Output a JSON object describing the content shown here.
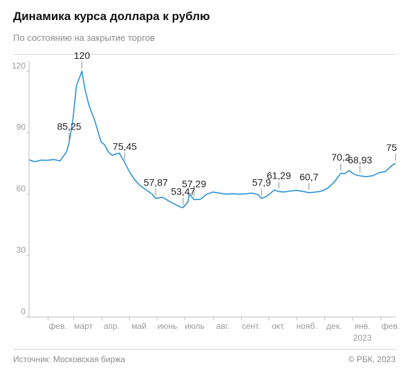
{
  "header": {
    "title": "Динамика курса доллара к рублю",
    "subtitle": "По состоянию на закрытие торгов"
  },
  "footer": {
    "source": "Источник: Московская биржа",
    "copyright": "© РБК, 2023"
  },
  "colors": {
    "line": "#2b8fd6",
    "axis": "#bdbdbd",
    "text": "#222222",
    "muted": "#9a9a9a"
  },
  "chart_data": {
    "type": "line",
    "title": "Динамика курса доллара к рублю",
    "ylim": [
      0,
      125
    ],
    "y_ticks": [
      0,
      30,
      60,
      90,
      120
    ],
    "y_tick_labels": [
      "0",
      "30",
      "60",
      "90",
      "120"
    ],
    "grid": false,
    "x_tick_labels": [
      "фев.",
      "март",
      "апр.",
      "май",
      "июнь",
      "июль",
      "авг.",
      "сент.",
      "окт.",
      "нояб.",
      "дек.",
      "янв.",
      "фев."
    ],
    "x_ticks": [
      "2022-02-01",
      "2022-03-01",
      "2022-04-01",
      "2022-05-01",
      "2022-06-01",
      "2022-07-01",
      "2022-08-01",
      "2022-09-01",
      "2022-10-01",
      "2022-11-01",
      "2022-12-01",
      "2023-01-01",
      "2023-02-01"
    ],
    "x_range": [
      "2022-01-11",
      "2023-02-17"
    ],
    "year_label": "2023",
    "series": [
      {
        "x": [
          "2022-01-11",
          "2022-01-17",
          "2022-01-24",
          "2022-01-31",
          "2022-02-07",
          "2022-02-14",
          "2022-02-21",
          "2022-02-24",
          "2022-02-28",
          "2022-03-04",
          "2022-03-10",
          "2022-03-11",
          "2022-03-14",
          "2022-03-18",
          "2022-03-24",
          "2022-03-31",
          "2022-04-04",
          "2022-04-08",
          "2022-04-12",
          "2022-04-20",
          "2022-04-26",
          "2022-05-01",
          "2022-05-06",
          "2022-05-12",
          "2022-05-18",
          "2022-05-26",
          "2022-05-30",
          "2022-06-06",
          "2022-06-14",
          "2022-06-20",
          "2022-06-27",
          "2022-06-29",
          "2022-07-04",
          "2022-07-06",
          "2022-07-11",
          "2022-07-18",
          "2022-07-25",
          "2022-08-01",
          "2022-08-08",
          "2022-08-15",
          "2022-08-22",
          "2022-08-29",
          "2022-09-05",
          "2022-09-12",
          "2022-09-19",
          "2022-09-23",
          "2022-09-27",
          "2022-10-03",
          "2022-10-07",
          "2022-10-12",
          "2022-10-17",
          "2022-10-24",
          "2022-10-31",
          "2022-11-07",
          "2022-11-14",
          "2022-11-21",
          "2022-11-28",
          "2022-12-05",
          "2022-12-12",
          "2022-12-19",
          "2022-12-23",
          "2022-12-28",
          "2023-01-03",
          "2023-01-09",
          "2023-01-16",
          "2023-01-23",
          "2023-01-30",
          "2023-02-06",
          "2023-02-13",
          "2023-02-17"
        ],
        "values": [
          76.8,
          75.8,
          76.6,
          76.5,
          76.9,
          76.2,
          80.5,
          85.25,
          96,
          113,
          120,
          117,
          110,
          103,
          96,
          85.5,
          84,
          80.5,
          79,
          80,
          75.45,
          71,
          67.5,
          64.5,
          62.5,
          60,
          57.87,
          58.5,
          56.5,
          55,
          53.5,
          53.47,
          56,
          60,
          57.29,
          57.5,
          60,
          61,
          60.5,
          60,
          60.2,
          60,
          60.1,
          60.5,
          59.8,
          57.9,
          58.5,
          60.5,
          62,
          61.29,
          61,
          61.5,
          61.8,
          61.4,
          60.7,
          61,
          61.5,
          63,
          66,
          70.2,
          70,
          71.5,
          69.6,
          68.93,
          68.5,
          69,
          70.5,
          71,
          74,
          75
        ]
      }
    ],
    "annotations": [
      {
        "label": "85,25",
        "x": "2022-02-24",
        "y": 85.25
      },
      {
        "label": "120",
        "x": "2022-03-10",
        "y": 120
      },
      {
        "label": "75,45",
        "x": "2022-04-26",
        "y": 75.45
      },
      {
        "label": "57,87",
        "x": "2022-05-30",
        "y": 57.87
      },
      {
        "label": "53,47",
        "x": "2022-06-29",
        "y": 53.47
      },
      {
        "label": "57,29",
        "x": "2022-07-11",
        "y": 57.29
      },
      {
        "label": "57,9",
        "x": "2022-09-23",
        "y": 57.9
      },
      {
        "label": "61,29",
        "x": "2022-10-12",
        "y": 61.29
      },
      {
        "label": "60,7",
        "x": "2022-11-14",
        "y": 60.7
      },
      {
        "label": "70,2",
        "x": "2022-12-19",
        "y": 70.2
      },
      {
        "label": "68,93",
        "x": "2023-01-09",
        "y": 68.93
      },
      {
        "label": "75",
        "x": "2023-02-17",
        "y": 75
      }
    ]
  }
}
